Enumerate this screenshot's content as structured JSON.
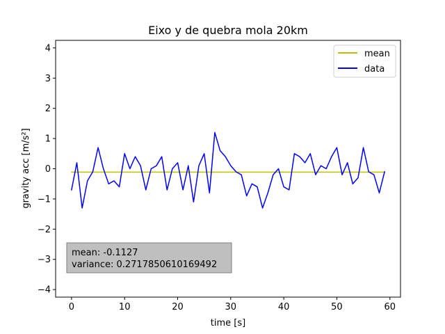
{
  "chart_data": {
    "type": "line",
    "title": "Eixo y de quebra mola 20km",
    "xlabel": "time [s]",
    "ylabel": "gravity acc [m/s²]",
    "xlim": [
      -3,
      62
    ],
    "ylim": [
      -4.25,
      4.25
    ],
    "xticks": [
      0,
      10,
      20,
      30,
      40,
      50,
      60
    ],
    "yticks": [
      -4,
      -3,
      -2,
      -1,
      0,
      1,
      2,
      3,
      4
    ],
    "grid": false,
    "legend_position": "top-right",
    "series": [
      {
        "name": "mean",
        "color": "#bfbf00",
        "x": [
          0,
          59
        ],
        "y": [
          -0.1127,
          -0.1127
        ]
      },
      {
        "name": "data",
        "color": "#0000ff",
        "x": [
          0,
          1,
          2,
          3,
          4,
          5,
          6,
          7,
          8,
          9,
          10,
          11,
          12,
          13,
          14,
          15,
          16,
          17,
          18,
          19,
          20,
          21,
          22,
          23,
          24,
          25,
          26,
          27,
          28,
          29,
          30,
          31,
          32,
          33,
          34,
          35,
          36,
          37,
          38,
          39,
          40,
          41,
          42,
          43,
          44,
          45,
          46,
          47,
          48,
          49,
          50,
          51,
          52,
          53,
          54,
          55,
          56,
          57,
          58,
          59
        ],
        "y": [
          -0.7,
          0.2,
          -1.3,
          -0.4,
          -0.1,
          0.7,
          0.0,
          -0.5,
          -0.4,
          -0.6,
          0.5,
          0.0,
          0.4,
          0.1,
          -0.7,
          0.0,
          0.1,
          0.4,
          -0.7,
          0.0,
          0.2,
          -0.7,
          0.1,
          -1.1,
          0.1,
          0.5,
          -0.8,
          1.2,
          0.6,
          0.4,
          0.1,
          -0.1,
          -0.2,
          -0.9,
          -0.5,
          -0.6,
          -1.3,
          -0.8,
          -0.2,
          0.0,
          -0.6,
          -0.7,
          0.5,
          0.4,
          0.2,
          0.5,
          -0.2,
          0.1,
          0.0,
          0.4,
          0.7,
          -0.2,
          0.2,
          -0.5,
          -0.3,
          0.7,
          -0.1,
          -0.2,
          -0.8,
          -0.1
        ]
      }
    ],
    "annotation": {
      "lines": [
        "mean: -0.1127",
        "variance: 0.2717850610169492"
      ],
      "background": "#bfbfbf"
    }
  }
}
